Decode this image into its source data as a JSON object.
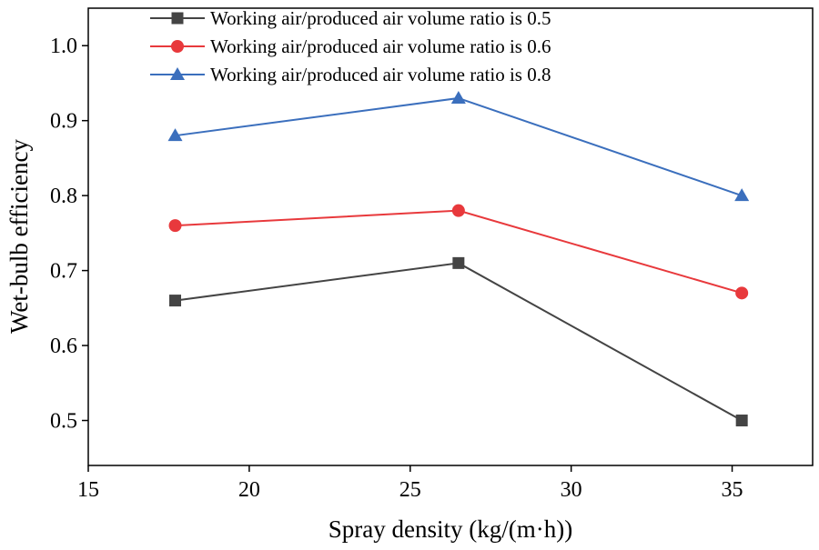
{
  "chart_data": {
    "type": "line",
    "title": "",
    "xlabel": "Spray density (kg/(m·h))",
    "ylabel": "Wet-bulb efficiency",
    "xlim": [
      15,
      37.5
    ],
    "ylim": [
      0.44,
      1.05
    ],
    "x_ticks": [
      15,
      20,
      25,
      30,
      35
    ],
    "x_tick_labels": [
      "15",
      "20",
      "25",
      "30",
      "35"
    ],
    "y_ticks": [
      0.5,
      0.6,
      0.7,
      0.8,
      0.9,
      1.0
    ],
    "y_tick_labels": [
      "0.5",
      "0.6",
      "0.7",
      "0.8",
      "0.9",
      "1.0"
    ],
    "legend_position": "top-center",
    "grid": false,
    "x": [
      17.7,
      26.5,
      35.3
    ],
    "series": [
      {
        "name": "Working air/produced air volume ratio is 0.5",
        "values": [
          0.66,
          0.71,
          0.5
        ],
        "color": "#444444",
        "marker": "square"
      },
      {
        "name": "Working air/produced air volume ratio is 0.6",
        "values": [
          0.76,
          0.78,
          0.67
        ],
        "color": "#e8393c",
        "marker": "circle"
      },
      {
        "name": "Working air/produced air volume ratio is 0.8",
        "values": [
          0.88,
          0.93,
          0.8
        ],
        "color": "#3b6fbd",
        "marker": "triangle"
      }
    ]
  }
}
